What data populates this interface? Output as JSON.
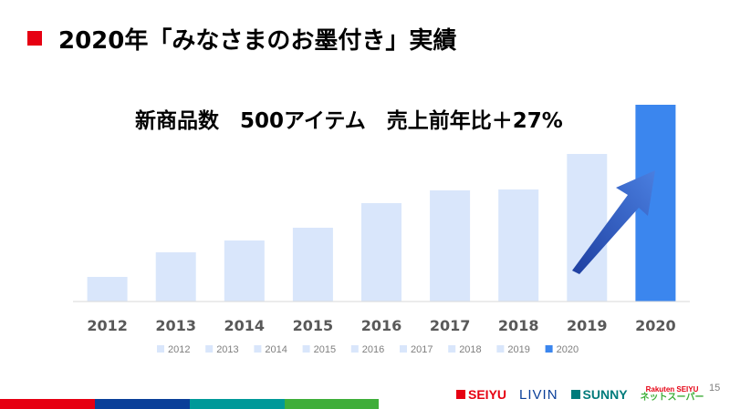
{
  "slide": {
    "title": "2020年「みなさまのお墨付き」実績",
    "page_number": "15"
  },
  "colors": {
    "title_marker": "#e60012",
    "bar_light": "#d9e6fb",
    "bar_highlight": "#3b86ee",
    "arrow": "#2f5cc6",
    "axis_line": "#d9d9d9",
    "legend_text": "#7f7f7f",
    "tick_text": "#595959"
  },
  "brand_bar": [
    {
      "color": "#e60012"
    },
    {
      "color": "#0a3f99"
    },
    {
      "color": "#009999"
    },
    {
      "color": "#3fae3a"
    }
  ],
  "logos": {
    "seiyu": {
      "text": "SEIYU",
      "color": "#e60012"
    },
    "livin": {
      "text": "LIVIN",
      "color": "#0a3f99"
    },
    "sunny": {
      "text": "SUNNY",
      "color": "#007b7b"
    },
    "rakuten_top": "Rakuten SEIYU",
    "rakuten_bottom": "ネットスーパー",
    "rakuten_top_color": "#e60012",
    "rakuten_bottom_color": "#3fae3a"
  },
  "chart_data": {
    "type": "bar",
    "title": "",
    "annotation": "新商品数　500アイテム　売上前年比＋27%",
    "xlabel": "",
    "ylabel": "",
    "categories": [
      "2012",
      "2013",
      "2014",
      "2015",
      "2016",
      "2017",
      "2018",
      "2019",
      "2020"
    ],
    "values": [
      27,
      54,
      67,
      81,
      108,
      122,
      123,
      162,
      216
    ],
    "highlight_category": "2020",
    "ylim": [
      0,
      216
    ],
    "grid": false,
    "legend": {
      "position": "bottom",
      "entries": [
        "2012",
        "2013",
        "2014",
        "2015",
        "2016",
        "2017",
        "2018",
        "2019",
        "2020"
      ]
    },
    "arrow_annotation": true
  }
}
